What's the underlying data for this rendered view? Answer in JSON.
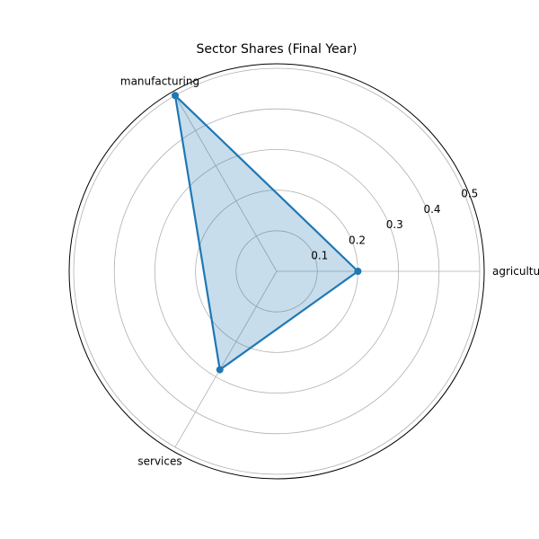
{
  "chart_data": {
    "type": "radar",
    "title": "Sector Shares (Final Year)",
    "categories": [
      "agriculture",
      "manufacturing",
      "services"
    ],
    "series": [
      {
        "values": [
          0.2,
          0.5,
          0.28
        ]
      }
    ],
    "rlim": [
      0,
      0.5
    ],
    "r_ticks": [
      0.1,
      0.2,
      0.3,
      0.4,
      0.5
    ],
    "grid": true,
    "legend": "none",
    "colors": {
      "line": "#1f77b4",
      "fill": "#1f77b4",
      "grid": "#b0b0b0",
      "frame": "#000000"
    }
  }
}
